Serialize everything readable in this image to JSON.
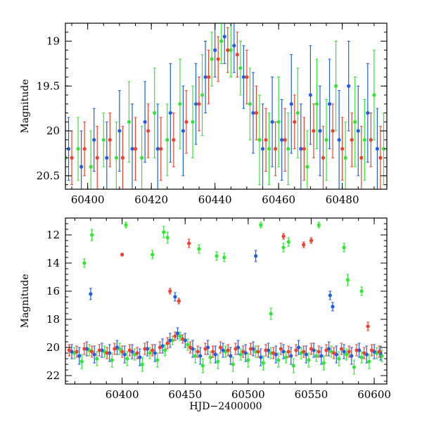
{
  "chart_data": [
    {
      "type": "scatter",
      "subtype": "light-curve-with-errorbars",
      "title": "",
      "xlabel": "",
      "ylabel": "Magnitude",
      "xlim": [
        60393,
        60494
      ],
      "ylim": [
        20.65,
        18.8
      ],
      "y_inverted": true,
      "xticks": [
        60400,
        60420,
        60440,
        60460,
        60480
      ],
      "yticks": [
        19,
        19.5,
        20,
        20.5
      ],
      "ytick_labels": [
        "19",
        "19.5",
        "20",
        "20.5"
      ],
      "series": [
        {
          "color": "#33e633",
          "x": [
            60393,
            60397,
            60401,
            60405,
            60409,
            60413,
            60417,
            60421,
            60425,
            60429,
            60433,
            60436,
            60439,
            60442,
            60445,
            60448,
            60451,
            60454,
            60457,
            60460,
            60463,
            60466,
            60469,
            60472,
            60475,
            60478,
            60481,
            60484,
            60487,
            60490,
            60493
          ],
          "y": [
            20.3,
            20.2,
            20.4,
            20.1,
            20.3,
            19.9,
            20.3,
            19.8,
            20.1,
            19.7,
            19.9,
            19.6,
            19.2,
            19.0,
            19.1,
            19.3,
            19.7,
            20.1,
            20.2,
            19.9,
            20.2,
            19.8,
            20.4,
            19.7,
            20.1,
            19.5,
            20.3,
            19.9,
            20.1,
            19.6,
            20.2
          ],
          "err": [
            0.3,
            0.35,
            0.4,
            0.3,
            0.4,
            0.45,
            0.35,
            0.5,
            0.4,
            0.5,
            0.4,
            0.45,
            0.3,
            0.25,
            0.3,
            0.3,
            0.4,
            0.5,
            0.4,
            0.5,
            0.4,
            0.5,
            0.4,
            0.5,
            0.45,
            0.5,
            0.4,
            0.5,
            0.45,
            0.5,
            0.4
          ]
        },
        {
          "color": "#1f5fe6",
          "x": [
            60394,
            60398,
            60402,
            60406,
            60410,
            60414,
            60418,
            60422,
            60426,
            60430,
            60434,
            60437,
            60440,
            60443,
            60446,
            60449,
            60452,
            60455,
            60458,
            60461,
            60464,
            60467,
            60470,
            60473,
            60476,
            60479,
            60482,
            60485,
            60488,
            60491
          ],
          "y": [
            20.2,
            20.4,
            20.1,
            20.3,
            20.0,
            20.2,
            19.9,
            20.2,
            19.8,
            20.0,
            19.7,
            19.4,
            19.1,
            18.95,
            19.05,
            19.4,
            19.8,
            20.2,
            19.9,
            20.1,
            19.7,
            20.2,
            19.6,
            20.0,
            19.7,
            20.1,
            19.5,
            20.0,
            19.8,
            20.2
          ],
          "err": [
            0.35,
            0.4,
            0.35,
            0.4,
            0.45,
            0.5,
            0.45,
            0.5,
            0.55,
            0.5,
            0.45,
            0.4,
            0.3,
            0.3,
            0.3,
            0.35,
            0.45,
            0.5,
            0.5,
            0.45,
            0.55,
            0.5,
            0.55,
            0.5,
            0.5,
            0.55,
            0.5,
            0.5,
            0.55,
            0.45
          ]
        },
        {
          "color": "#f0412d",
          "x": [
            60395,
            60399,
            60403,
            60407,
            60411,
            60415,
            60419,
            60423,
            60427,
            60431,
            60435,
            60438,
            60441,
            60444,
            60447,
            60450,
            60453,
            60456,
            60459,
            60462,
            60465,
            60468,
            60471,
            60474,
            60477,
            60480,
            60483,
            60486,
            60489,
            60492
          ],
          "y": [
            20.3,
            20.2,
            20.3,
            20.1,
            20.3,
            20.2,
            20.0,
            20.2,
            20.1,
            19.9,
            19.7,
            19.4,
            19.2,
            19.1,
            19.15,
            19.4,
            19.8,
            20.1,
            20.2,
            20.1,
            19.9,
            20.2,
            20.0,
            20.3,
            20.0,
            20.2,
            20.1,
            20.3,
            20.1,
            20.3
          ],
          "err": [
            0.3,
            0.3,
            0.35,
            0.3,
            0.35,
            0.35,
            0.3,
            0.35,
            0.3,
            0.35,
            0.3,
            0.3,
            0.25,
            0.25,
            0.25,
            0.3,
            0.3,
            0.35,
            0.3,
            0.35,
            0.3,
            0.35,
            0.3,
            0.35,
            0.3,
            0.35,
            0.3,
            0.35,
            0.3,
            0.35
          ]
        }
      ]
    },
    {
      "type": "scatter",
      "subtype": "light-curve-with-errorbars",
      "title": "",
      "xlabel": "HJD−2400000",
      "ylabel": "Magnitude",
      "xlim": [
        60355,
        60610
      ],
      "ylim": [
        22.6,
        10.8
      ],
      "y_inverted": true,
      "xticks": [
        60400,
        60450,
        60500,
        60550,
        60600
      ],
      "yticks": [
        12,
        14,
        16,
        18,
        20,
        22
      ],
      "series": [
        {
          "color": "#33e633",
          "x": [
            60362,
            60368,
            60374,
            60380,
            60386,
            60392,
            60398,
            60404,
            60410,
            60416,
            60422,
            60428,
            60434,
            60440,
            60446,
            60452,
            60458,
            60464,
            60470,
            60476,
            60482,
            60488,
            60494,
            60500,
            60506,
            60512,
            60518,
            60524,
            60530,
            60536,
            60542,
            60548,
            60554,
            60560,
            60566,
            60572,
            60578,
            60584,
            60590,
            60596,
            60602,
            60606,
            60370,
            60376,
            60403,
            60424,
            60433,
            60436,
            60461,
            60475,
            60481,
            60510,
            60528,
            60532,
            60556,
            60576,
            60579,
            60590,
            60518
          ],
          "y": [
            20.4,
            21.0,
            20.2,
            20.8,
            20.3,
            20.9,
            20.1,
            20.8,
            20.5,
            21.2,
            20.4,
            20.9,
            20.2,
            19.5,
            19.2,
            19.8,
            20.6,
            21.3,
            20.7,
            21.0,
            20.3,
            21.2,
            20.5,
            20.9,
            20.3,
            21.1,
            20.4,
            20.9,
            20.7,
            21.3,
            20.4,
            20.9,
            20.6,
            21.1,
            20.3,
            20.8,
            20.5,
            21.4,
            20.7,
            21.0,
            20.4,
            20.6,
            14.0,
            12.0,
            11.3,
            13.4,
            11.8,
            12.2,
            13.0,
            13.5,
            13.6,
            11.3,
            12.9,
            12.5,
            11.3,
            12.9,
            15.2,
            16.0,
            17.6
          ],
          "err": [
            0.4,
            0.5,
            0.4,
            0.5,
            0.4,
            0.5,
            0.4,
            0.5,
            0.4,
            0.5,
            0.4,
            0.5,
            0.4,
            0.3,
            0.3,
            0.4,
            0.5,
            0.5,
            0.4,
            0.5,
            0.4,
            0.5,
            0.4,
            0.5,
            0.4,
            0.5,
            0.4,
            0.5,
            0.4,
            0.5,
            0.4,
            0.5,
            0.4,
            0.5,
            0.4,
            0.5,
            0.4,
            0.5,
            0.4,
            0.5,
            0.4,
            0.4,
            0.3,
            0.4,
            0.2,
            0.3,
            0.4,
            0.4,
            0.3,
            0.3,
            0.3,
            0.2,
            0.3,
            0.3,
            0.2,
            0.3,
            0.4,
            0.3,
            0.4
          ]
        },
        {
          "color": "#1f5fe6",
          "x": [
            60360,
            60366,
            60372,
            60378,
            60384,
            60390,
            60396,
            60402,
            60408,
            60414,
            60420,
            60426,
            60432,
            60438,
            60444,
            60450,
            60456,
            60462,
            60468,
            60474,
            60480,
            60486,
            60492,
            60498,
            60504,
            60510,
            60516,
            60522,
            60528,
            60534,
            60540,
            60546,
            60552,
            60558,
            60564,
            60570,
            60576,
            60582,
            60588,
            60594,
            60600,
            60605,
            60375,
            60442,
            60506,
            60565,
            60567
          ],
          "y": [
            20.3,
            20.6,
            20.1,
            20.5,
            20.2,
            20.4,
            20.0,
            20.5,
            20.3,
            20.7,
            20.1,
            20.4,
            19.9,
            19.5,
            19.0,
            19.5,
            20.1,
            20.6,
            20.0,
            20.5,
            20.2,
            20.6,
            20.0,
            20.4,
            20.1,
            20.7,
            20.2,
            20.5,
            20.3,
            20.6,
            20.0,
            20.5,
            20.2,
            20.6,
            20.1,
            20.5,
            20.3,
            20.6,
            20.2,
            20.5,
            20.3,
            20.4,
            16.2,
            16.4,
            13.5,
            16.3,
            17.1
          ],
          "err": [
            0.5,
            0.6,
            0.5,
            0.6,
            0.5,
            0.6,
            0.5,
            0.6,
            0.5,
            0.6,
            0.5,
            0.6,
            0.5,
            0.5,
            0.4,
            0.5,
            0.6,
            0.6,
            0.5,
            0.6,
            0.5,
            0.6,
            0.5,
            0.6,
            0.5,
            0.6,
            0.5,
            0.6,
            0.5,
            0.6,
            0.5,
            0.6,
            0.5,
            0.6,
            0.5,
            0.6,
            0.5,
            0.6,
            0.5,
            0.6,
            0.5,
            0.5,
            0.4,
            0.3,
            0.4,
            0.3,
            0.3
          ]
        },
        {
          "color": "#f0412d",
          "x": [
            60358,
            60364,
            60370,
            60376,
            60382,
            60388,
            60394,
            60400,
            60406,
            60412,
            60418,
            60424,
            60430,
            60436,
            60442,
            60448,
            60454,
            60460,
            60466,
            60472,
            60478,
            60484,
            60490,
            60496,
            60502,
            60508,
            60514,
            60520,
            60526,
            60532,
            60538,
            60544,
            60550,
            60556,
            60562,
            60568,
            60574,
            60580,
            60586,
            60592,
            60598,
            60604,
            60400,
            60438,
            60445,
            60453,
            60528,
            60550,
            60544,
            60595
          ],
          "y": [
            20.2,
            20.3,
            20.1,
            20.3,
            20.2,
            20.4,
            20.1,
            20.3,
            20.2,
            20.4,
            20.1,
            20.2,
            20.0,
            19.7,
            19.2,
            19.4,
            20.0,
            20.3,
            20.1,
            20.3,
            20.0,
            20.2,
            20.1,
            20.3,
            20.1,
            20.3,
            20.2,
            20.4,
            20.1,
            20.3,
            20.2,
            20.3,
            20.1,
            20.3,
            20.2,
            20.4,
            20.1,
            20.3,
            20.2,
            20.4,
            20.2,
            20.3,
            13.4,
            16.0,
            16.7,
            12.6,
            12.1,
            12.4,
            12.7,
            18.5
          ],
          "err": [
            0.4,
            0.4,
            0.4,
            0.4,
            0.4,
            0.4,
            0.4,
            0.4,
            0.4,
            0.4,
            0.4,
            0.4,
            0.4,
            0.4,
            0.3,
            0.3,
            0.4,
            0.4,
            0.4,
            0.4,
            0.4,
            0.4,
            0.4,
            0.4,
            0.4,
            0.4,
            0.4,
            0.4,
            0.4,
            0.4,
            0.4,
            0.4,
            0.4,
            0.4,
            0.4,
            0.4,
            0.4,
            0.4,
            0.4,
            0.4,
            0.4,
            0.4,
            0.1,
            0.2,
            0.2,
            0.3,
            0.2,
            0.2,
            0.2,
            0.3
          ]
        }
      ]
    }
  ]
}
